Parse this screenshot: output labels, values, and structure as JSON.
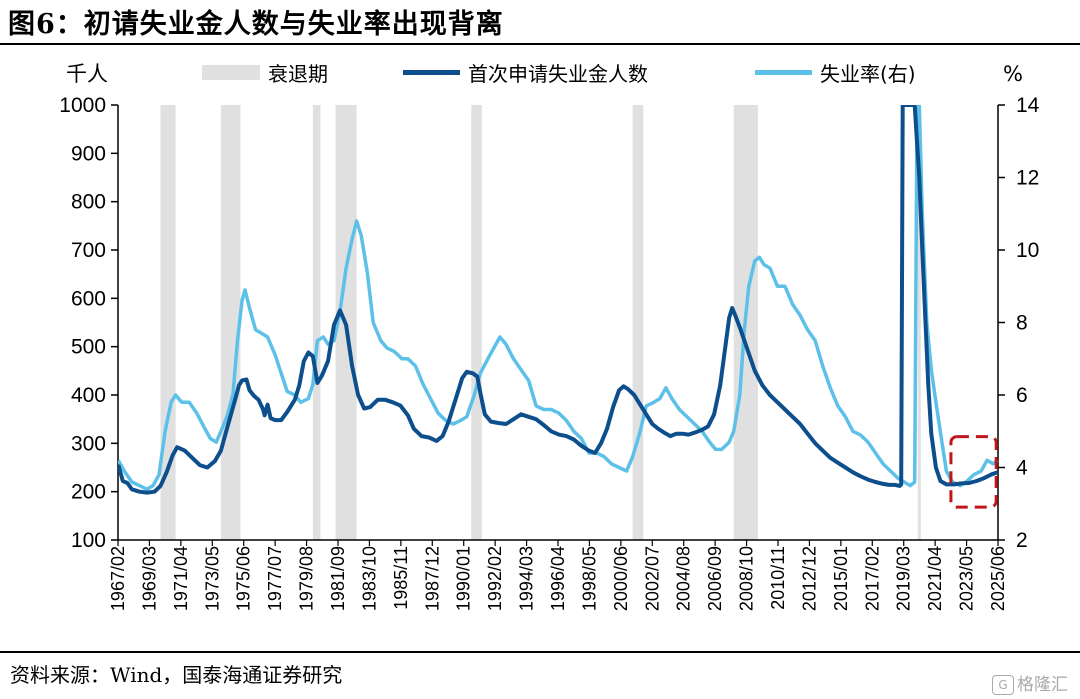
{
  "figure": {
    "title": "图6：初请失业金人数与失业率出现背离",
    "source": "资料来源：Wind，国泰海通证券研究",
    "watermark": "格隆汇",
    "watermark_logo": "G"
  },
  "chart_data": {
    "type": "line",
    "title": "初请失业金人数与失业率出现背离",
    "left_axis": {
      "label": "千人",
      "range": [
        100,
        1000
      ],
      "ticks": [
        "100",
        "200",
        "300",
        "400",
        "500",
        "600",
        "700",
        "800",
        "900",
        "1000"
      ]
    },
    "right_axis": {
      "label": "%",
      "range": [
        2,
        14
      ],
      "ticks": [
        "2",
        "4",
        "6",
        "8",
        "10",
        "12",
        "14"
      ]
    },
    "x_range": [
      1967.08,
      2025.42
    ],
    "x_ticks": [
      "1967/02",
      "1969/03",
      "1971/04",
      "1973/05",
      "1975/06",
      "1977/07",
      "1979/08",
      "1981/09",
      "1983/10",
      "1985/11",
      "1987/12",
      "1990/01",
      "1992/02",
      "1994/03",
      "1996/04",
      "1998/05",
      "2000/06",
      "2002/07",
      "2004/08",
      "2006/09",
      "2008/10",
      "2010/11",
      "2012/12",
      "2015/01",
      "2017/02",
      "2019/03",
      "2021/04",
      "2023/05",
      "2025/06"
    ],
    "recession_legend": "衰退期",
    "recessions": [
      [
        1969.9,
        1970.9
      ],
      [
        1973.9,
        1975.2
      ],
      [
        1980.0,
        1980.5
      ],
      [
        1981.5,
        1982.9
      ],
      [
        1990.5,
        1991.2
      ],
      [
        2001.2,
        2001.9
      ],
      [
        2007.9,
        2009.5
      ],
      [
        2020.1,
        2020.3
      ]
    ],
    "series": [
      {
        "name": "首次申请失业金人数",
        "axis": "left",
        "color": "#0d4e8c",
        "points": [
          [
            1967.1,
            255
          ],
          [
            1967.4,
            222
          ],
          [
            1967.7,
            218
          ],
          [
            1968.0,
            205
          ],
          [
            1968.5,
            200
          ],
          [
            1969.0,
            198
          ],
          [
            1969.5,
            200
          ],
          [
            1969.9,
            212
          ],
          [
            1970.3,
            240
          ],
          [
            1970.7,
            275
          ],
          [
            1971.0,
            292
          ],
          [
            1971.5,
            285
          ],
          [
            1972.0,
            270
          ],
          [
            1972.5,
            255
          ],
          [
            1973.0,
            250
          ],
          [
            1973.5,
            263
          ],
          [
            1973.9,
            285
          ],
          [
            1974.3,
            330
          ],
          [
            1974.8,
            385
          ],
          [
            1975.1,
            420
          ],
          [
            1975.3,
            430
          ],
          [
            1975.6,
            432
          ],
          [
            1975.8,
            410
          ],
          [
            1976.1,
            398
          ],
          [
            1976.4,
            390
          ],
          [
            1976.7,
            370
          ],
          [
            1976.8,
            358
          ],
          [
            1977.0,
            380
          ],
          [
            1977.2,
            352
          ],
          [
            1977.5,
            348
          ],
          [
            1977.9,
            348
          ],
          [
            1978.3,
            365
          ],
          [
            1978.8,
            390
          ],
          [
            1979.1,
            420
          ],
          [
            1979.4,
            470
          ],
          [
            1979.7,
            488
          ],
          [
            1980.0,
            480
          ],
          [
            1980.3,
            425
          ],
          [
            1980.6,
            440
          ],
          [
            1981.0,
            470
          ],
          [
            1981.4,
            545
          ],
          [
            1981.8,
            575
          ],
          [
            1982.2,
            545
          ],
          [
            1982.6,
            460
          ],
          [
            1983.0,
            400
          ],
          [
            1983.4,
            372
          ],
          [
            1983.8,
            375
          ],
          [
            1984.3,
            390
          ],
          [
            1984.8,
            390
          ],
          [
            1985.3,
            385
          ],
          [
            1985.8,
            378
          ],
          [
            1986.3,
            358
          ],
          [
            1986.7,
            330
          ],
          [
            1987.2,
            315
          ],
          [
            1987.7,
            312
          ],
          [
            1988.2,
            305
          ],
          [
            1988.6,
            315
          ],
          [
            1989.0,
            345
          ],
          [
            1989.5,
            395
          ],
          [
            1989.9,
            435
          ],
          [
            1990.2,
            448
          ],
          [
            1990.6,
            445
          ],
          [
            1990.9,
            438
          ],
          [
            1991.1,
            405
          ],
          [
            1991.4,
            360
          ],
          [
            1991.8,
            345
          ],
          [
            1992.3,
            342
          ],
          [
            1992.8,
            340
          ],
          [
            1993.3,
            350
          ],
          [
            1993.8,
            360
          ],
          [
            1994.3,
            355
          ],
          [
            1994.8,
            350
          ],
          [
            1995.3,
            338
          ],
          [
            1995.8,
            325
          ],
          [
            1996.3,
            318
          ],
          [
            1996.8,
            315
          ],
          [
            1997.3,
            308
          ],
          [
            1997.8,
            295
          ],
          [
            1998.3,
            285
          ],
          [
            1998.7,
            280
          ],
          [
            1999.1,
            300
          ],
          [
            1999.5,
            330
          ],
          [
            1999.9,
            375
          ],
          [
            2000.3,
            410
          ],
          [
            2000.6,
            418
          ],
          [
            2000.9,
            412
          ],
          [
            2001.3,
            400
          ],
          [
            2001.7,
            380
          ],
          [
            2002.1,
            360
          ],
          [
            2002.5,
            340
          ],
          [
            2002.9,
            330
          ],
          [
            2003.3,
            322
          ],
          [
            2003.7,
            315
          ],
          [
            2004.1,
            320
          ],
          [
            2004.5,
            320
          ],
          [
            2004.9,
            318
          ],
          [
            2005.3,
            322
          ],
          [
            2005.8,
            328
          ],
          [
            2006.2,
            335
          ],
          [
            2006.6,
            360
          ],
          [
            2007.0,
            420
          ],
          [
            2007.3,
            490
          ],
          [
            2007.6,
            560
          ],
          [
            2007.8,
            580
          ],
          [
            2008.0,
            565
          ],
          [
            2008.3,
            540
          ],
          [
            2008.8,
            495
          ],
          [
            2009.3,
            450
          ],
          [
            2009.8,
            420
          ],
          [
            2010.3,
            400
          ],
          [
            2010.8,
            385
          ],
          [
            2011.3,
            370
          ],
          [
            2011.8,
            355
          ],
          [
            2012.3,
            340
          ],
          [
            2012.8,
            320
          ],
          [
            2013.3,
            300
          ],
          [
            2013.8,
            285
          ],
          [
            2014.3,
            270
          ],
          [
            2014.8,
            260
          ],
          [
            2015.3,
            250
          ],
          [
            2015.8,
            240
          ],
          [
            2016.3,
            232
          ],
          [
            2016.8,
            225
          ],
          [
            2017.3,
            220
          ],
          [
            2017.8,
            216
          ],
          [
            2018.2,
            214
          ],
          [
            2018.6,
            214
          ],
          [
            2018.9,
            212
          ],
          [
            2019.0,
            215
          ],
          [
            2019.1,
            1000
          ],
          [
            2019.9,
            1000
          ],
          [
            2020.0,
            950
          ],
          [
            2020.2,
            850
          ],
          [
            2020.4,
            700
          ],
          [
            2020.6,
            560
          ],
          [
            2020.8,
            420
          ],
          [
            2021.0,
            320
          ],
          [
            2021.3,
            250
          ],
          [
            2021.6,
            222
          ],
          [
            2022.0,
            215
          ],
          [
            2022.5,
            215
          ],
          [
            2023.0,
            217
          ],
          [
            2023.5,
            218
          ],
          [
            2024.0,
            222
          ],
          [
            2024.5,
            228
          ],
          [
            2025.0,
            236
          ],
          [
            2025.4,
            240
          ]
        ]
      },
      {
        "name": "失业率(右)",
        "axis": "right",
        "color": "#5cc0e8",
        "points": [
          [
            1967.1,
            4.2
          ],
          [
            1967.5,
            3.9
          ],
          [
            1968.0,
            3.6
          ],
          [
            1968.5,
            3.5
          ],
          [
            1969.0,
            3.4
          ],
          [
            1969.4,
            3.5
          ],
          [
            1969.8,
            3.8
          ],
          [
            1970.2,
            5.0
          ],
          [
            1970.6,
            5.8
          ],
          [
            1970.9,
            6.0
          ],
          [
            1971.3,
            5.8
          ],
          [
            1971.8,
            5.8
          ],
          [
            1972.3,
            5.5
          ],
          [
            1972.8,
            5.1
          ],
          [
            1973.2,
            4.8
          ],
          [
            1973.6,
            4.7
          ],
          [
            1973.9,
            5.0
          ],
          [
            1974.3,
            5.4
          ],
          [
            1974.7,
            6.0
          ],
          [
            1975.0,
            7.5
          ],
          [
            1975.3,
            8.6
          ],
          [
            1975.5,
            8.9
          ],
          [
            1975.8,
            8.4
          ],
          [
            1976.2,
            7.8
          ],
          [
            1976.6,
            7.7
          ],
          [
            1977.0,
            7.6
          ],
          [
            1977.5,
            7.1
          ],
          [
            1977.9,
            6.6
          ],
          [
            1978.3,
            6.1
          ],
          [
            1978.8,
            6.0
          ],
          [
            1979.2,
            5.8
          ],
          [
            1979.7,
            5.9
          ],
          [
            1980.0,
            6.3
          ],
          [
            1980.3,
            7.5
          ],
          [
            1980.7,
            7.6
          ],
          [
            1981.0,
            7.4
          ],
          [
            1981.4,
            7.5
          ],
          [
            1981.8,
            8.3
          ],
          [
            1982.2,
            9.5
          ],
          [
            1982.6,
            10.3
          ],
          [
            1982.9,
            10.8
          ],
          [
            1983.2,
            10.4
          ],
          [
            1983.6,
            9.4
          ],
          [
            1984.0,
            8.0
          ],
          [
            1984.5,
            7.5
          ],
          [
            1984.9,
            7.3
          ],
          [
            1985.4,
            7.2
          ],
          [
            1985.9,
            7.0
          ],
          [
            1986.3,
            7.0
          ],
          [
            1986.8,
            6.8
          ],
          [
            1987.3,
            6.3
          ],
          [
            1987.8,
            5.9
          ],
          [
            1988.3,
            5.5
          ],
          [
            1988.8,
            5.3
          ],
          [
            1989.3,
            5.2
          ],
          [
            1989.8,
            5.3
          ],
          [
            1990.2,
            5.4
          ],
          [
            1990.7,
            6.0
          ],
          [
            1991.1,
            6.6
          ],
          [
            1991.6,
            7.0
          ],
          [
            1992.0,
            7.3
          ],
          [
            1992.4,
            7.6
          ],
          [
            1992.8,
            7.4
          ],
          [
            1993.3,
            7.0
          ],
          [
            1993.8,
            6.7
          ],
          [
            1994.3,
            6.4
          ],
          [
            1994.8,
            5.7
          ],
          [
            1995.3,
            5.6
          ],
          [
            1995.8,
            5.6
          ],
          [
            1996.3,
            5.5
          ],
          [
            1996.8,
            5.3
          ],
          [
            1997.3,
            5.0
          ],
          [
            1997.8,
            4.8
          ],
          [
            1998.3,
            4.4
          ],
          [
            1998.8,
            4.4
          ],
          [
            1999.3,
            4.3
          ],
          [
            1999.8,
            4.1
          ],
          [
            2000.3,
            4.0
          ],
          [
            2000.8,
            3.9
          ],
          [
            2001.2,
            4.3
          ],
          [
            2001.7,
            5.0
          ],
          [
            2002.1,
            5.7
          ],
          [
            2002.6,
            5.8
          ],
          [
            2003.0,
            5.9
          ],
          [
            2003.4,
            6.2
          ],
          [
            2003.8,
            5.9
          ],
          [
            2004.3,
            5.6
          ],
          [
            2004.8,
            5.4
          ],
          [
            2005.3,
            5.2
          ],
          [
            2005.8,
            5.0
          ],
          [
            2006.3,
            4.7
          ],
          [
            2006.7,
            4.5
          ],
          [
            2007.1,
            4.5
          ],
          [
            2007.6,
            4.7
          ],
          [
            2007.9,
            5.0
          ],
          [
            2008.3,
            6.0
          ],
          [
            2008.6,
            7.8
          ],
          [
            2008.9,
            9.0
          ],
          [
            2009.3,
            9.7
          ],
          [
            2009.6,
            9.8
          ],
          [
            2009.9,
            9.6
          ],
          [
            2010.3,
            9.5
          ],
          [
            2010.8,
            9.0
          ],
          [
            2011.3,
            9.0
          ],
          [
            2011.8,
            8.5
          ],
          [
            2012.3,
            8.2
          ],
          [
            2012.8,
            7.8
          ],
          [
            2013.3,
            7.5
          ],
          [
            2013.8,
            6.8
          ],
          [
            2014.3,
            6.2
          ],
          [
            2014.8,
            5.7
          ],
          [
            2015.3,
            5.4
          ],
          [
            2015.8,
            5.0
          ],
          [
            2016.3,
            4.9
          ],
          [
            2016.8,
            4.7
          ],
          [
            2017.3,
            4.4
          ],
          [
            2017.8,
            4.1
          ],
          [
            2018.3,
            3.9
          ],
          [
            2018.8,
            3.7
          ],
          [
            2019.2,
            3.6
          ],
          [
            2019.6,
            3.5
          ],
          [
            2019.9,
            3.6
          ],
          [
            2020.05,
            13.9
          ],
          [
            2020.2,
            14.0
          ],
          [
            2020.4,
            11.0
          ],
          [
            2020.7,
            8.0
          ],
          [
            2021.0,
            6.7
          ],
          [
            2021.3,
            5.8
          ],
          [
            2021.7,
            4.7
          ],
          [
            2022.0,
            3.9
          ],
          [
            2022.4,
            3.6
          ],
          [
            2022.9,
            3.5
          ],
          [
            2023.3,
            3.6
          ],
          [
            2023.8,
            3.8
          ],
          [
            2024.3,
            3.9
          ],
          [
            2024.7,
            4.2
          ],
          [
            2025.1,
            4.1
          ],
          [
            2025.4,
            4.2
          ]
        ]
      }
    ],
    "highlight_box": {
      "x": [
        2022.3,
        2025.3
      ],
      "y_left": [
        168,
        314
      ],
      "style": "dashed",
      "color": "#c0161b"
    },
    "grid": false,
    "legend_position": "top"
  }
}
